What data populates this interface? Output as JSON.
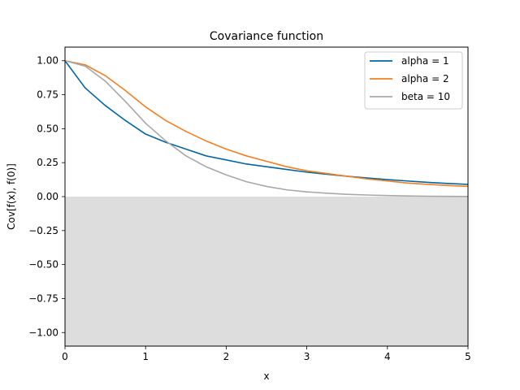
{
  "chart_data": {
    "type": "line",
    "title": "Covariance function",
    "xlabel": "x",
    "ylabel": "Cov[f(x), f(0)]",
    "xlim": [
      0,
      5
    ],
    "ylim": [
      -1.1,
      1.1
    ],
    "xticks": [
      0,
      1,
      2,
      3,
      4,
      5
    ],
    "xtick_labels": [
      "0",
      "1",
      "2",
      "3",
      "4",
      "5"
    ],
    "yticks": [
      1.0,
      0.75,
      0.5,
      0.25,
      0.0,
      -0.25,
      -0.5,
      -0.75,
      -1.0
    ],
    "ytick_labels": [
      "1.00",
      "0.75",
      "0.50",
      "0.25",
      "0.00",
      "−0.25",
      "−0.50",
      "−0.75",
      "−1.00"
    ],
    "grid": false,
    "legend_position": "top-right",
    "shaded_region": {
      "y_from": -1.1,
      "y_to": 0.0,
      "color": "#dddddd"
    },
    "x": [
      0,
      0.25,
      0.5,
      0.75,
      1.0,
      1.25,
      1.5,
      1.75,
      2.0,
      2.25,
      2.5,
      2.75,
      3.0,
      3.25,
      3.5,
      3.75,
      4.0,
      4.25,
      4.5,
      4.75,
      5.0
    ],
    "series": [
      {
        "name": "alpha = 1",
        "color": "#0067a4",
        "values": [
          1.0,
          0.8,
          0.67,
          0.56,
          0.46,
          0.4,
          0.35,
          0.3,
          0.27,
          0.24,
          0.22,
          0.2,
          0.18,
          0.165,
          0.15,
          0.137,
          0.125,
          0.115,
          0.105,
          0.097,
          0.09
        ]
      },
      {
        "name": "alpha = 2",
        "color": "#f57f20",
        "values": [
          1.0,
          0.97,
          0.89,
          0.78,
          0.66,
          0.56,
          0.48,
          0.41,
          0.35,
          0.3,
          0.26,
          0.22,
          0.19,
          0.17,
          0.15,
          0.13,
          0.115,
          0.1,
          0.09,
          0.082,
          0.075
        ]
      },
      {
        "name": "beta = 10",
        "color": "#a8a8a8",
        "values": [
          1.0,
          0.96,
          0.85,
          0.7,
          0.54,
          0.41,
          0.3,
          0.22,
          0.16,
          0.11,
          0.075,
          0.05,
          0.035,
          0.025,
          0.017,
          0.012,
          0.008,
          0.005,
          0.003,
          0.002,
          0.001
        ]
      }
    ]
  }
}
